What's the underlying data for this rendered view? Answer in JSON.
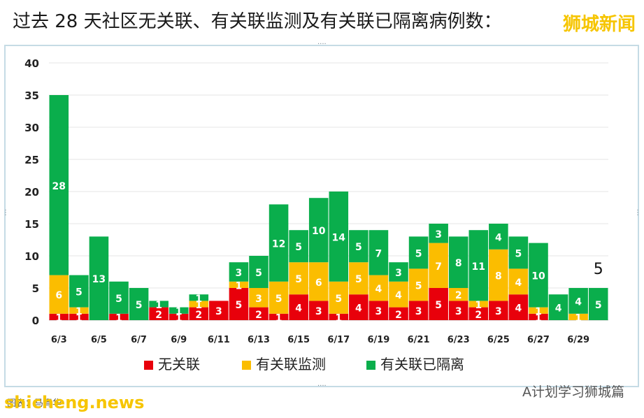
{
  "headline": "过去 28 天社区无关联、有关联监测及有关联已隔离病例数：",
  "brand_top": "狮城新闻",
  "watermark_left": "shicheng.news",
  "watermark_right": "A计划学习狮城篇",
  "source_text": "图表：马青华",
  "chart_data": {
    "type": "bar",
    "stacked": true,
    "categories": [
      "6/3",
      "6/4",
      "6/5",
      "6/6",
      "6/7",
      "6/8",
      "6/9",
      "6/10",
      "6/11",
      "6/12",
      "6/13",
      "6/14",
      "6/15",
      "6/16",
      "6/17",
      "6/18",
      "6/19",
      "6/20",
      "6/21",
      "6/22",
      "6/23",
      "6/24",
      "6/25",
      "6/26",
      "6/27",
      "6/28",
      "6/29",
      "6/30"
    ],
    "x_tick_labels": [
      "6/3",
      "6/5",
      "6/7",
      "6/9",
      "6/11",
      "6/13",
      "6/15",
      "6/17",
      "6/19",
      "6/21",
      "6/23",
      "6/25",
      "6/27",
      "6/29"
    ],
    "series": [
      {
        "name": "无关联",
        "color": "#e8000b",
        "values": [
          1,
          1,
          0,
          1,
          0,
          2,
          1,
          2,
          3,
          5,
          2,
          1,
          4,
          3,
          1,
          4,
          3,
          2,
          3,
          5,
          3,
          2,
          3,
          4,
          1,
          0,
          0,
          0
        ]
      },
      {
        "name": "有关联监测",
        "color": "#fbbd00",
        "values": [
          6,
          1,
          0,
          0,
          0,
          0,
          0,
          1,
          0,
          1,
          3,
          5,
          5,
          6,
          5,
          5,
          4,
          4,
          5,
          7,
          2,
          1,
          8,
          4,
          1,
          0,
          1,
          0
        ]
      },
      {
        "name": "有关联已隔离",
        "color": "#0aae4c",
        "values": [
          28,
          5,
          13,
          5,
          5,
          1,
          1,
          1,
          0,
          3,
          5,
          12,
          5,
          10,
          14,
          5,
          7,
          3,
          5,
          3,
          8,
          11,
          4,
          5,
          10,
          4,
          4,
          5
        ]
      }
    ],
    "ylim": [
      0,
      40
    ],
    "yticks": [
      0,
      5,
      10,
      15,
      20,
      25,
      30,
      35,
      40
    ],
    "grid": true,
    "legend_position": "bottom",
    "annotations": [
      {
        "text": "5",
        "category": "6/30"
      }
    ]
  }
}
